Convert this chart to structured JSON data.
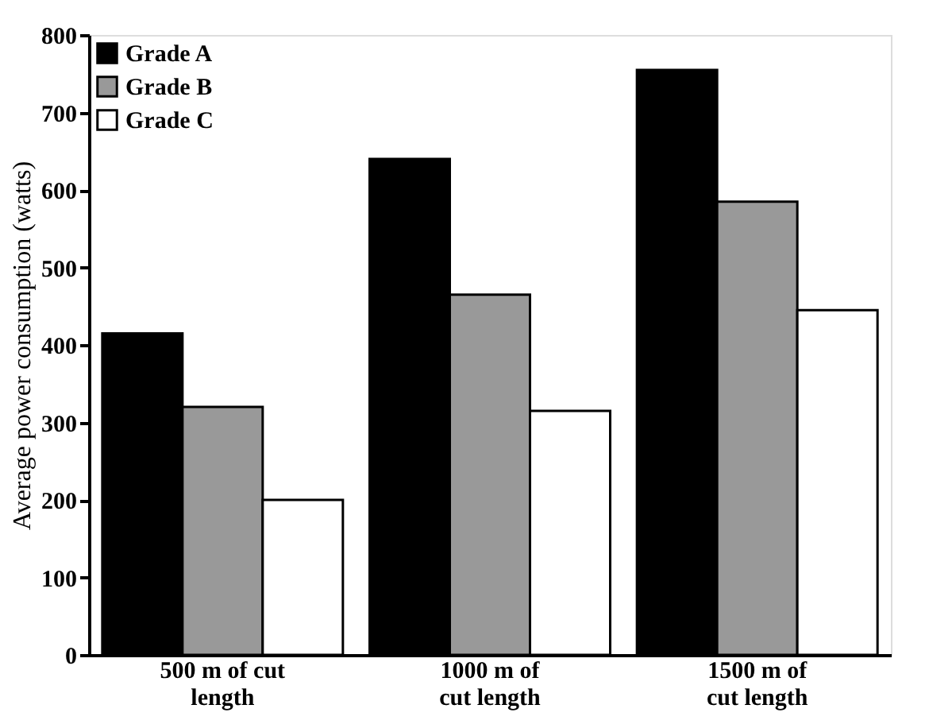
{
  "chart_data": {
    "type": "bar",
    "ylabel": "Average power consumption (watts)",
    "categories": [
      "500 m of cut length",
      "1000 m of cut length",
      "1500 m of cut length"
    ],
    "series": [
      {
        "name": "Grade A",
        "color": "#000000",
        "values": [
          415,
          640,
          755
        ]
      },
      {
        "name": "Grade B",
        "color": "#999999",
        "values": [
          320,
          465,
          585
        ]
      },
      {
        "name": "Grade C",
        "color": "#ffffff",
        "values": [
          200,
          315,
          445
        ]
      }
    ],
    "ylim": [
      0,
      800
    ],
    "yticks": [
      0,
      100,
      200,
      300,
      400,
      500,
      600,
      700,
      800
    ],
    "grid": false,
    "legend": "top left"
  }
}
